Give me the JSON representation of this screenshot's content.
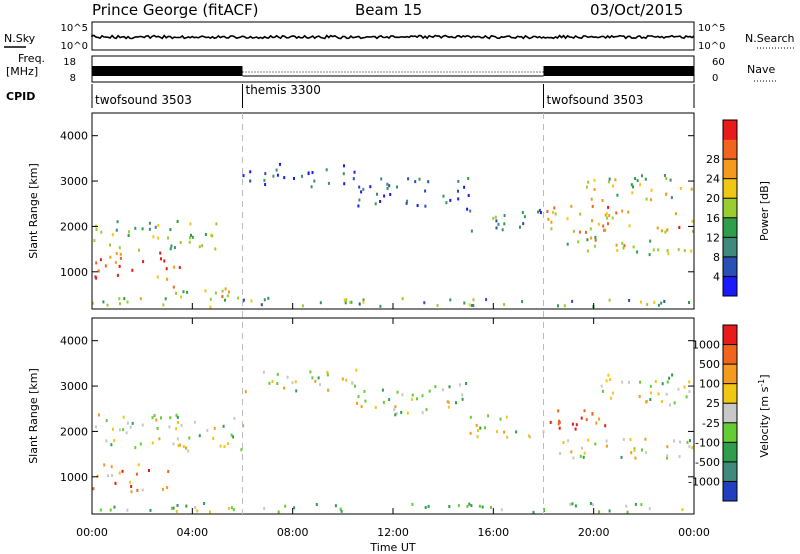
{
  "header": {
    "station": "Prince George (fitACF)",
    "beam": "Beam 15",
    "date": "03/Oct/2015"
  },
  "top_panels": {
    "nsky_label": "N.Sky",
    "nsearch_label": "N.Search",
    "nsky_ticks": [
      "10^5",
      "10^0"
    ],
    "nsearch_ticks": [
      "10^5",
      "10^0"
    ],
    "freq_label_1": "Freq.",
    "freq_label_2": "[MHz]",
    "freq_ticks": [
      "18",
      "8"
    ],
    "nave_label": "Nave",
    "nave_ticks": [
      "60",
      "0"
    ],
    "cpid_label": "CPID",
    "cpid_segments": [
      {
        "name": "twofsound 3503",
        "start_h": 0,
        "end_h": 6
      },
      {
        "name": "themis 3300",
        "start_h": 6,
        "end_h": 18
      },
      {
        "name": "twofsound 3503",
        "start_h": 18,
        "end_h": 24
      }
    ]
  },
  "x_axis": {
    "label": "Time UT",
    "ticks": [
      "00:00",
      "04:00",
      "08:00",
      "12:00",
      "16:00",
      "20:00",
      "00:00"
    ],
    "tick_hours": [
      0,
      4,
      8,
      12,
      16,
      20,
      24
    ],
    "range_hours": [
      0,
      24
    ],
    "mode_change_hours": [
      6,
      18
    ]
  },
  "chart_data": [
    {
      "type": "heatmap",
      "name": "power",
      "ylabel": "Slant Range [km]",
      "ylim": [
        180,
        4500
      ],
      "yticks": [
        "1000",
        "2000",
        "3000",
        "4000"
      ],
      "ytick_values": [
        1000,
        2000,
        3000,
        4000
      ],
      "colorbar": {
        "label": "Power [dB]",
        "ticks": [
          "4",
          "8",
          "12",
          "16",
          "20",
          "24",
          "28"
        ],
        "colors": [
          "#1a1aff",
          "#2a4fb5",
          "#3f8a7a",
          "#2e9e4a",
          "#9acd32",
          "#f0c814",
          "#f49a1e",
          "#f0641e",
          "#e81a1a"
        ]
      },
      "echo_bands": [
        {
          "h0": 0.0,
          "h1": 24.0,
          "r0": 250,
          "r1": 450,
          "level": 3
        },
        {
          "h0": 0.0,
          "h1": 3.5,
          "r0": 850,
          "r1": 1450,
          "level": 7
        },
        {
          "h0": 0.0,
          "h1": 5.0,
          "r0": 1500,
          "r1": 2200,
          "level": 3
        },
        {
          "h0": 1.5,
          "h1": 6.0,
          "r0": 400,
          "r1": 700,
          "level": 5
        },
        {
          "h0": 6.0,
          "h1": 10.5,
          "r0": 2900,
          "r1": 3400,
          "level": 1
        },
        {
          "h0": 10.5,
          "h1": 15.0,
          "r0": 2400,
          "r1": 3100,
          "level": 1
        },
        {
          "h0": 15.0,
          "h1": 18.0,
          "r0": 1900,
          "r1": 2400,
          "level": 2
        },
        {
          "h0": 18.0,
          "h1": 24.0,
          "r0": 1900,
          "r1": 2500,
          "level": 6
        },
        {
          "h0": 18.5,
          "h1": 24.0,
          "r0": 1400,
          "r1": 1800,
          "level": 5
        },
        {
          "h0": 19.5,
          "h1": 24.0,
          "r0": 2600,
          "r1": 3200,
          "level": 4
        }
      ]
    },
    {
      "type": "heatmap",
      "name": "velocity",
      "ylabel": "Slant Range [km]",
      "ylim": [
        180,
        4500
      ],
      "yticks": [
        "1000",
        "2000",
        "3000",
        "4000"
      ],
      "ytick_values": [
        1000,
        2000,
        3000,
        4000
      ],
      "colorbar": {
        "label": "Velocity [m s",
        "label_sup": "-1",
        "label_end": "]",
        "ticks": [
          "1000",
          "500",
          "100",
          "25",
          "-25",
          "-100",
          "-500",
          "-1000"
        ],
        "colors": [
          "#1f3fbf",
          "#3f8a7a",
          "#2e9e4a",
          "#66cc33",
          "#c8c8c8",
          "#f0c814",
          "#f49a1e",
          "#f0641e",
          "#e81a1a"
        ]
      },
      "echo_bands": [
        {
          "h0": 0.0,
          "h1": 24.0,
          "r0": 250,
          "r1": 450,
          "level": 3
        },
        {
          "h0": 0.0,
          "h1": 3.0,
          "r0": 700,
          "r1": 1300,
          "level": 6
        },
        {
          "h0": 0.0,
          "h1": 6.0,
          "r0": 1600,
          "r1": 2400,
          "level": 4
        },
        {
          "h0": 6.0,
          "h1": 10.5,
          "r0": 2900,
          "r1": 3400,
          "level": 4
        },
        {
          "h0": 10.5,
          "h1": 15.0,
          "r0": 2400,
          "r1": 3100,
          "level": 4
        },
        {
          "h0": 15.0,
          "h1": 18.0,
          "r0": 1900,
          "r1": 2400,
          "level": 4
        },
        {
          "h0": 18.0,
          "h1": 20.5,
          "r0": 2000,
          "r1": 2600,
          "level": 8
        },
        {
          "h0": 18.0,
          "h1": 24.0,
          "r0": 1400,
          "r1": 1900,
          "level": 4
        },
        {
          "h0": 20.0,
          "h1": 24.0,
          "r0": 2600,
          "r1": 3300,
          "level": 4
        }
      ]
    }
  ]
}
